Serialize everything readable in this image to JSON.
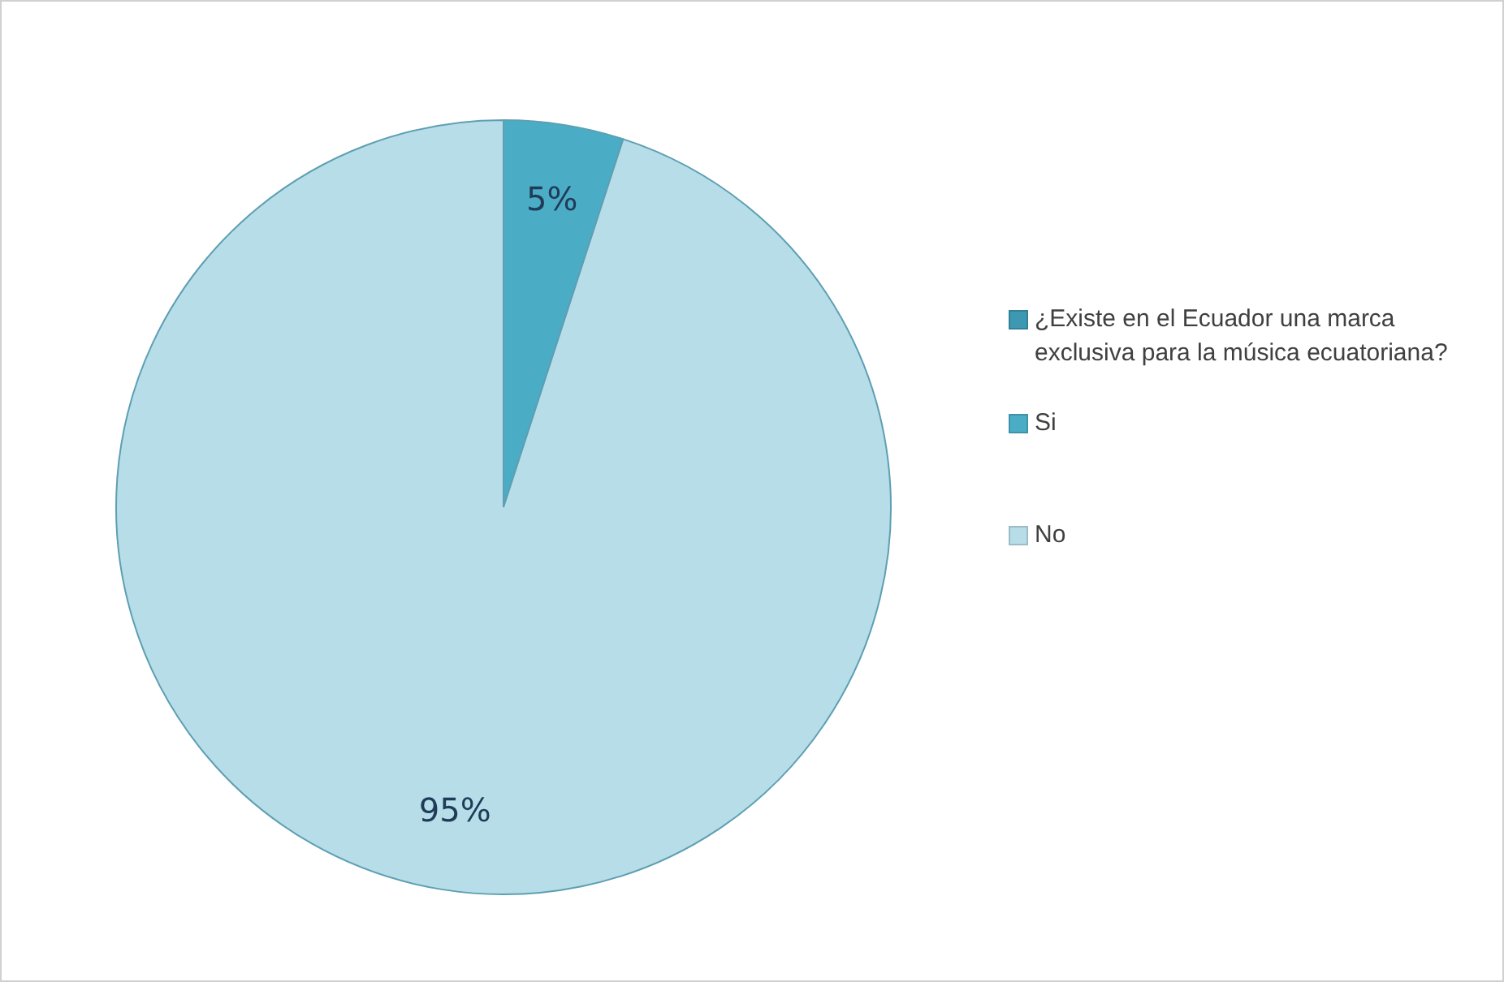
{
  "chart_data": {
    "type": "pie",
    "categories": [
      "¿Existe en el Ecuador una marca exclusiva para la música ecuatoriana?",
      "Si",
      "No"
    ],
    "values": [
      0,
      5,
      95
    ],
    "colors": [
      "#3d98b1",
      "#4bacc6",
      "#b7dde8"
    ],
    "value_labels": [
      null,
      "5%",
      "95%"
    ],
    "legend": "right"
  }
}
